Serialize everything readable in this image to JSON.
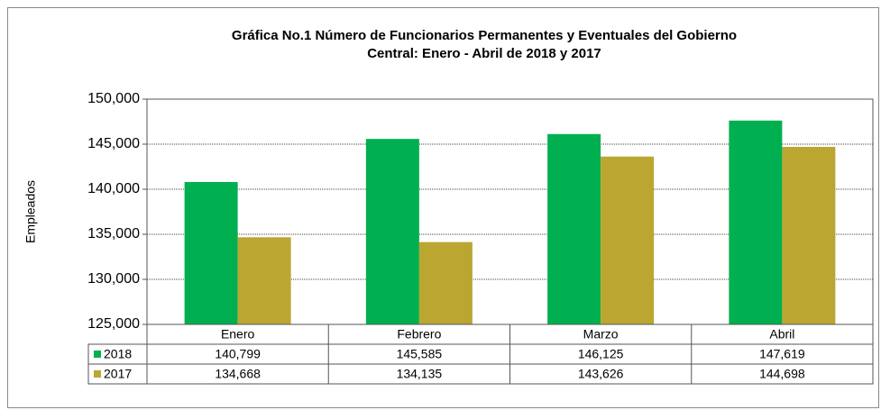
{
  "chart_data": {
    "type": "bar",
    "title": [
      "Gráfica No.1 Número de Funcionarios  Permanentes y Eventuales del Gobierno",
      "Central: Enero - Abril de 2018 y 2017"
    ],
    "y_label": "Empleados",
    "categories": [
      "Enero",
      "Febrero",
      "Marzo",
      "Abril"
    ],
    "series": [
      {
        "name": "2018",
        "color": "#00b050",
        "values": [
          140799,
          145585,
          146125,
          147619
        ],
        "value_labels": [
          "140,799",
          "145,585",
          "146,125",
          "147,619"
        ]
      },
      {
        "name": "2017",
        "color": "#bba632",
        "values": [
          134668,
          134135,
          143626,
          144698
        ],
        "value_labels": [
          "134,668",
          "134,135",
          "143,626",
          "144,698"
        ]
      }
    ],
    "ylim": [
      125000,
      150000
    ],
    "yticks": [
      {
        "value": 125000,
        "label": "125,000"
      },
      {
        "value": 130000,
        "label": "130,000"
      },
      {
        "value": 135000,
        "label": "135,000"
      },
      {
        "value": 140000,
        "label": "140,000"
      },
      {
        "value": 145000,
        "label": "145,000"
      },
      {
        "value": 150000,
        "label": "150,000"
      }
    ],
    "grid": true
  }
}
